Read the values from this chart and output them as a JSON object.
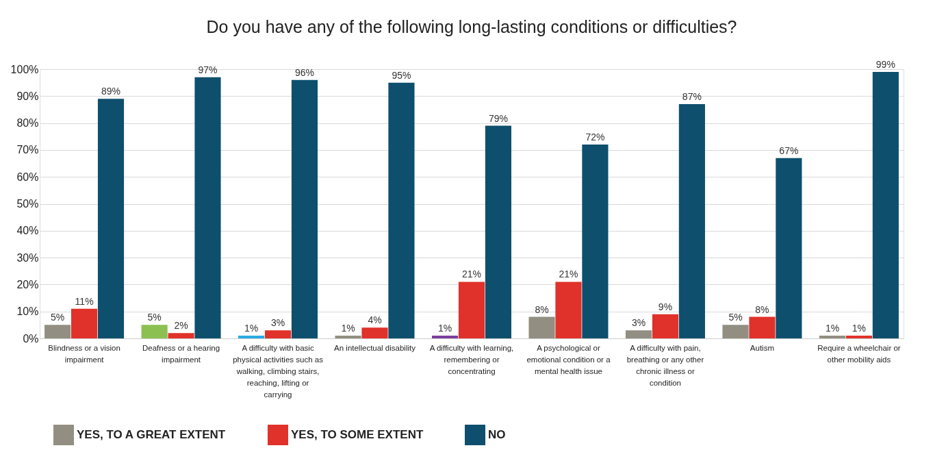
{
  "chart_data": {
    "type": "bar",
    "title": "Do you have any of the following long-lasting conditions  or difficulties?",
    "categories": [
      "Blindness or a vision impairment",
      "Deafness or a hearing impairment",
      "A difficulty with basic physical activities such as walking, climbing stairs, reaching, lifting or carrying",
      "An intellectual disability",
      "A difficulty with learning, remembering or concentrating",
      "A psychological or emotional condition or a mental health issue",
      "A difficulty with pain, breathing or any other chronic illness or condition",
      "Autism",
      "Require a wheelchair or other mobility aids"
    ],
    "series": [
      {
        "name": "YES, TO A GREAT EXTENT",
        "color": "#928f82",
        "colors": [
          "#928f82",
          "#8cc152",
          "#29abe2",
          "#928f82",
          "#7b3fa0",
          "#928f82",
          "#928f82",
          "#928f82",
          "#928f82"
        ],
        "values": [
          5,
          5,
          1,
          1,
          1,
          8,
          3,
          5,
          1
        ],
        "value_labels": [
          "5%",
          "5%",
          "1%",
          "1%",
          "1%",
          "8%",
          "3%",
          "5%",
          "1%"
        ]
      },
      {
        "name": "YES, TO SOME EXTENT",
        "color": "#e0322a",
        "values": [
          11,
          2,
          3,
          4,
          21,
          21,
          9,
          8,
          1
        ],
        "value_labels": [
          "11%",
          "2%",
          "3%",
          "4%",
          "21%",
          "21%",
          "9%",
          "8%",
          "1%"
        ]
      },
      {
        "name": "NO",
        "color": "#0e4f6e",
        "values": [
          89,
          97,
          96,
          95,
          79,
          72,
          87,
          67,
          99
        ],
        "value_labels": [
          "89%",
          "97%",
          "96%",
          "95%",
          "79%",
          "72%",
          "87%",
          "67%",
          "99%"
        ]
      }
    ],
    "ylim": [
      0,
      100
    ],
    "yticks": [
      {
        "value": 0,
        "label": "0%"
      },
      {
        "value": 10,
        "label": "10%"
      },
      {
        "value": 20,
        "label": "20%"
      },
      {
        "value": 30,
        "label": "30%"
      },
      {
        "value": 40,
        "label": "40%"
      },
      {
        "value": 50,
        "label": "50%"
      },
      {
        "value": 60,
        "label": "60%"
      },
      {
        "value": 70,
        "label": "70%"
      },
      {
        "value": 80,
        "label": "80%"
      },
      {
        "value": 90,
        "label": "90%"
      },
      {
        "value": 100,
        "label": "100%"
      }
    ],
    "grid": "y",
    "legend": "bottom"
  }
}
